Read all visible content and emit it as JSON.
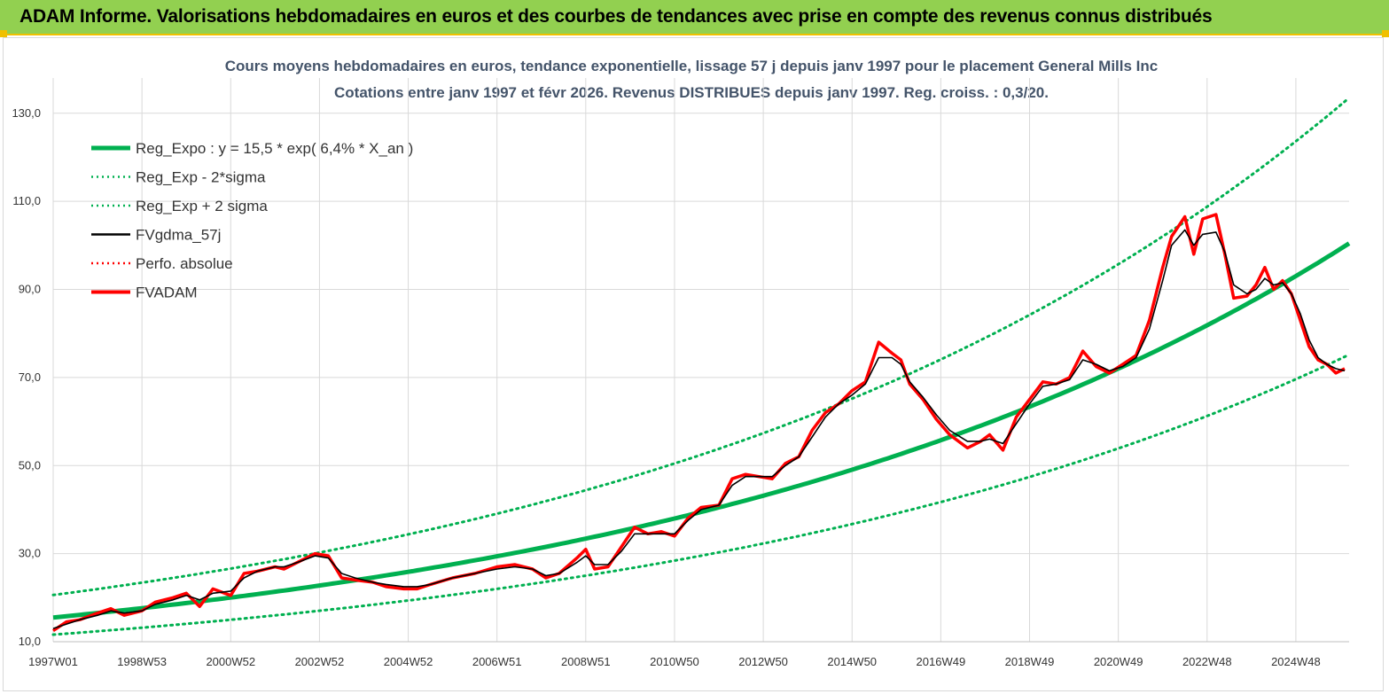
{
  "banner": {
    "title": "ADAM Informe. Valorisations hebdomadaires en euros et des courbes de tendances avec prise en compte des revenus connus distribués"
  },
  "colors": {
    "banner_bg": "#92d050",
    "accent": "#f0c000",
    "reg_expo": "#00b050",
    "fvgdma": "#000000",
    "perfo": "#ff0000",
    "fvadam": "#ff0000"
  },
  "chart_data": {
    "type": "line",
    "title": "Cours moyens hebdomadaires en euros, tendance exponentielle, lissage 57 j depuis janv 1997 pour le placement General Mills Inc",
    "subtitle": "Cotations entre janv 1997 et févr 2026. Revenus DISTRIBUES depuis janv 1997. Reg. croiss. : 0,3/20.",
    "xlabel": "",
    "ylabel": "",
    "ylim": [
      10,
      138
    ],
    "xlim": [
      1997.0,
      2026.2
    ],
    "grid": true,
    "legend_position": "top-left",
    "y_ticks": [
      "10,0",
      "30,0",
      "50,0",
      "70,0",
      "90,0",
      "110,0",
      "130,0"
    ],
    "x_ticks": [
      "1997W01",
      "1998W53",
      "2000W52",
      "2002W52",
      "2004W52",
      "2006W51",
      "2008W51",
      "2010W50",
      "2012W50",
      "2014W50",
      "2016W49",
      "2018W49",
      "2020W49",
      "2022W48",
      "2024W48"
    ],
    "legend": [
      {
        "label": "Reg_Expo : y = 15,5 * exp( 6,4% *  X_an )",
        "style": "solid-thick",
        "color": "#00b050"
      },
      {
        "label": "Reg_Exp - 2*sigma",
        "style": "dotted",
        "color": "#00b050"
      },
      {
        "label": "Reg_Exp + 2 sigma",
        "style": "dotted",
        "color": "#00b050"
      },
      {
        "label": "FVgdma_57j",
        "style": "solid",
        "color": "#000000"
      },
      {
        "label": "Perfo. absolue",
        "style": "dotted",
        "color": "#ff0000"
      },
      {
        "label": "FVADAM",
        "style": "solid-thick",
        "color": "#ff0000"
      }
    ],
    "series": [
      {
        "name": "Reg_Expo : y = 15,5 * exp( 6,4% *  X_an )",
        "formula": {
          "a": 15.5,
          "b": 0.064,
          "x0": 1997.0
        },
        "x_range": [
          1997.0,
          2026.2
        ]
      },
      {
        "name": "Reg_Exp - 2*sigma",
        "formula": {
          "a": 11.6,
          "b": 0.064,
          "x0": 1997.0
        },
        "x_range": [
          1997.0,
          2026.2
        ]
      },
      {
        "name": "Reg_Exp + 2 sigma",
        "formula": {
          "a": 20.6,
          "b": 0.064,
          "x0": 1997.0
        },
        "x_range": [
          1997.0,
          2026.2
        ]
      },
      {
        "name": "FVADAM",
        "x": [
          1997.0,
          1997.3,
          1997.6,
          1998.0,
          1998.3,
          1998.6,
          1999.0,
          1999.3,
          1999.7,
          2000.0,
          2000.3,
          2000.6,
          2001.0,
          2001.3,
          2001.6,
          2002.0,
          2002.2,
          2002.5,
          2002.9,
          2003.2,
          2003.5,
          2003.8,
          2004.2,
          2004.5,
          2004.9,
          2005.2,
          2005.5,
          2006.0,
          2006.5,
          2007.0,
          2007.4,
          2007.8,
          2008.1,
          2008.4,
          2008.8,
          2009.0,
          2009.2,
          2009.5,
          2009.8,
          2010.1,
          2010.4,
          2010.7,
          2011.0,
          2011.3,
          2011.6,
          2012.0,
          2012.3,
          2012.6,
          2012.9,
          2013.2,
          2013.5,
          2013.8,
          2014.1,
          2014.4,
          2014.7,
          2015.0,
          2015.3,
          2015.6,
          2015.9,
          2016.1,
          2016.3,
          2016.6,
          2016.9,
          2017.2,
          2017.6,
          2017.9,
          2018.1,
          2018.4,
          2018.7,
          2019.0,
          2019.3,
          2019.6,
          2019.9,
          2020.2,
          2020.5,
          2020.8,
          2021.1,
          2021.4,
          2021.7,
          2022.0,
          2022.2,
          2022.5,
          2022.7,
          2022.9,
          2023.2,
          2023.4,
          2023.6,
          2023.9,
          2024.1,
          2024.3,
          2024.5,
          2024.7,
          2024.9,
          2025.1,
          2025.3,
          2025.5,
          2025.7,
          2025.9,
          2026.1
        ],
        "y": [
          12.5,
          14.5,
          15.0,
          16.5,
          17.5,
          16.0,
          17.0,
          19.0,
          20.0,
          21.0,
          18.0,
          22.0,
          20.5,
          25.5,
          26.0,
          27.0,
          26.5,
          28.0,
          30.0,
          29.5,
          24.5,
          24.0,
          23.5,
          22.5,
          22.0,
          22.0,
          23.0,
          24.5,
          25.5,
          27.0,
          27.5,
          26.5,
          24.5,
          25.5,
          29.0,
          31.0,
          26.5,
          27.0,
          31.5,
          36.0,
          34.5,
          35.0,
          34.0,
          38.0,
          40.5,
          41.0,
          47.0,
          48.0,
          47.5,
          47.0,
          50.5,
          52.0,
          58.0,
          62.0,
          64.0,
          67.0,
          69.0,
          78.0,
          75.5,
          74.0,
          68.5,
          65.0,
          60.5,
          57.0,
          54.0,
          55.5,
          57.0,
          53.5,
          61.0,
          65.0,
          69.0,
          68.5,
          70.0,
          76.0,
          72.5,
          71.0,
          73.0,
          75.0,
          83.0,
          95.0,
          102.0,
          106.5,
          98.0,
          106.0,
          107.0,
          98.0,
          88.0,
          88.5,
          91.0,
          95.0,
          90.0,
          92.0,
          89.0,
          83.0,
          77.0,
          74.0,
          73.0,
          71.0,
          72.0
        ]
      },
      {
        "name": "FVgdma_57j",
        "x": [
          1997.0,
          1997.3,
          1997.6,
          1998.0,
          1998.3,
          1998.6,
          1999.0,
          1999.3,
          1999.7,
          2000.0,
          2000.3,
          2000.6,
          2001.0,
          2001.3,
          2001.6,
          2002.0,
          2002.2,
          2002.5,
          2002.9,
          2003.2,
          2003.5,
          2003.8,
          2004.2,
          2004.5,
          2004.9,
          2005.2,
          2005.5,
          2006.0,
          2006.5,
          2007.0,
          2007.4,
          2007.8,
          2008.1,
          2008.4,
          2008.8,
          2009.0,
          2009.2,
          2009.5,
          2009.8,
          2010.1,
          2010.4,
          2010.7,
          2011.0,
          2011.3,
          2011.6,
          2012.0,
          2012.3,
          2012.6,
          2012.9,
          2013.2,
          2013.5,
          2013.8,
          2014.1,
          2014.4,
          2014.7,
          2015.0,
          2015.3,
          2015.6,
          2015.9,
          2016.1,
          2016.3,
          2016.6,
          2016.9,
          2017.2,
          2017.6,
          2017.9,
          2018.1,
          2018.4,
          2018.7,
          2019.0,
          2019.3,
          2019.6,
          2019.9,
          2020.2,
          2020.5,
          2020.8,
          2021.1,
          2021.4,
          2021.7,
          2022.0,
          2022.2,
          2022.5,
          2022.7,
          2022.9,
          2023.2,
          2023.4,
          2023.6,
          2023.9,
          2024.1,
          2024.3,
          2024.5,
          2024.7,
          2024.9,
          2025.1,
          2025.3,
          2025.5,
          2025.7,
          2025.9,
          2026.1
        ],
        "y": [
          13.0,
          14.0,
          15.0,
          16.0,
          17.0,
          16.5,
          17.0,
          18.5,
          19.5,
          20.5,
          19.5,
          21.0,
          21.5,
          24.5,
          26.0,
          27.0,
          27.0,
          28.0,
          29.5,
          29.0,
          25.5,
          24.5,
          23.5,
          23.0,
          22.5,
          22.5,
          23.0,
          24.5,
          25.5,
          26.5,
          27.0,
          26.5,
          25.0,
          25.5,
          28.0,
          29.5,
          27.5,
          27.5,
          30.5,
          34.5,
          34.5,
          34.5,
          34.5,
          37.5,
          40.0,
          41.0,
          45.5,
          47.5,
          47.5,
          47.5,
          50.0,
          52.0,
          56.5,
          61.0,
          64.0,
          66.0,
          68.5,
          74.5,
          74.5,
          73.0,
          69.0,
          65.5,
          61.5,
          58.0,
          55.5,
          55.5,
          56.0,
          55.0,
          59.5,
          64.0,
          68.0,
          68.5,
          69.5,
          74.0,
          73.0,
          71.5,
          72.5,
          74.5,
          81.0,
          92.0,
          100.0,
          103.5,
          100.0,
          102.5,
          103.0,
          98.5,
          91.0,
          89.0,
          90.0,
          92.5,
          91.0,
          91.5,
          89.0,
          84.5,
          78.5,
          74.5,
          73.0,
          72.0,
          71.5
        ]
      },
      {
        "name": "Perfo. absolue",
        "follows": "FVADAM"
      }
    ]
  }
}
